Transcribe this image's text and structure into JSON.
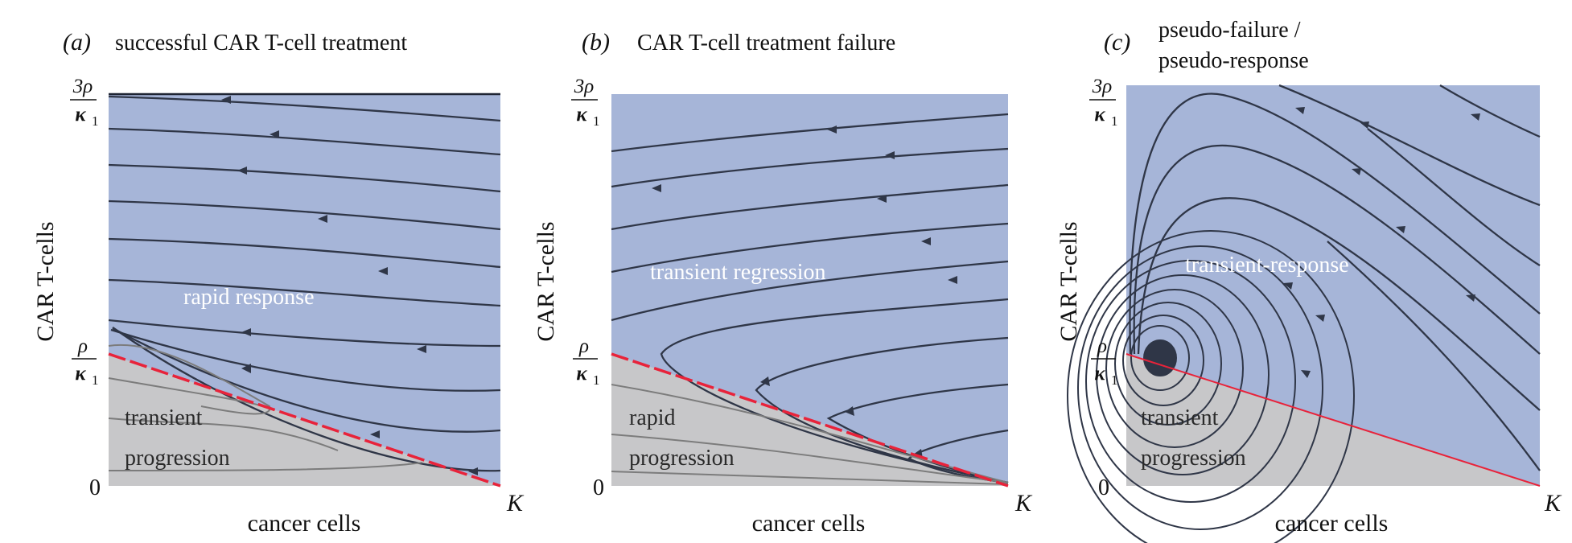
{
  "colors": {
    "blue_region": "#a6b5d8",
    "grey_region": "#c7c7c9",
    "separatrix": "#e8233a",
    "trajectory_dark": "#2f3647",
    "trajectory_grey": "#7a7a7a",
    "region_text_light": "#ffffff",
    "region_text_dark": "#2a2a2a"
  },
  "common": {
    "y_axis_label": "CAR T-cells",
    "x_axis_label": "cancer cells",
    "x_max_label": "K",
    "origin_label": "0",
    "y_top_num": "3ρ",
    "y_top_den": "κ",
    "y_mid_num": "ρ",
    "y_mid_den": "κ",
    "den_sub": "1"
  },
  "panels": [
    {
      "letter": "(a)",
      "title_lines": [
        "successful CAR T-cell treatment"
      ],
      "upper_region_label": "rapid response",
      "lower_region_label": [
        "transient",
        "progression"
      ]
    },
    {
      "letter": "(b)",
      "title_lines": [
        "CAR T-cell treatment failure"
      ],
      "upper_region_label": "transient regression",
      "lower_region_label": [
        "rapid",
        "progression"
      ]
    },
    {
      "letter": "(c)",
      "title_lines": [
        "pseudo-failure /",
        "pseudo-response"
      ],
      "upper_region_label": "transient-response",
      "lower_region_label": [
        "transient",
        "progression"
      ]
    }
  ]
}
